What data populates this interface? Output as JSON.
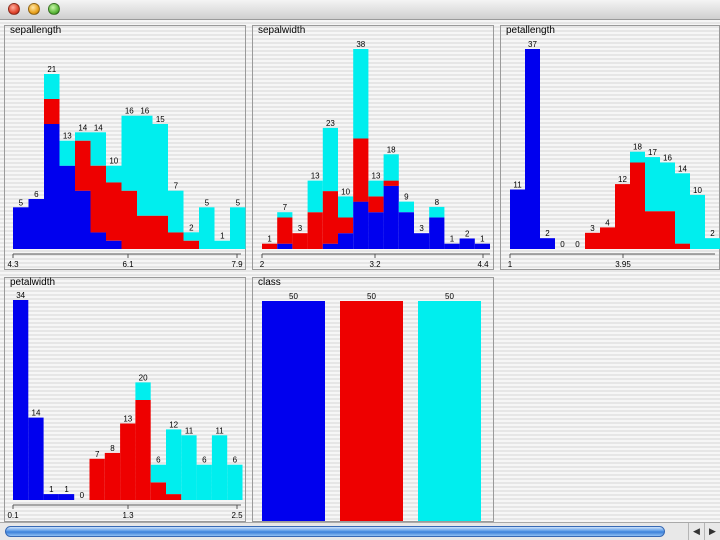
{
  "window": {
    "title": ""
  },
  "colors": {
    "setosa": "#0000ee",
    "versicolor": "#ee0000",
    "virginica": "#00eeee"
  },
  "chart_data": [
    {
      "type": "bar",
      "title": "sepallength",
      "tick_labels": [
        "4.3",
        "6.1",
        "7.9"
      ],
      "stacked": true,
      "totals": [
        5,
        6,
        21,
        13,
        14,
        14,
        10,
        16,
        16,
        15,
        7,
        2,
        5,
        1,
        5
      ],
      "series": [
        {
          "values": [
            5,
            6,
            15,
            10,
            7,
            2,
            1,
            0,
            0,
            0,
            0,
            0,
            0,
            0,
            0
          ]
        },
        {
          "values": [
            0,
            0,
            3,
            0,
            6,
            8,
            7,
            7,
            4,
            4,
            2,
            1,
            0,
            0,
            0
          ]
        },
        {
          "values": [
            0,
            0,
            3,
            3,
            1,
            4,
            2,
            9,
            12,
            11,
            5,
            1,
            5,
            1,
            5
          ]
        }
      ]
    },
    {
      "type": "bar",
      "title": "sepalwidth",
      "tick_labels": [
        "2",
        "3.2",
        "4.4"
      ],
      "stacked": true,
      "totals": [
        1,
        7,
        3,
        13,
        23,
        10,
        38,
        13,
        18,
        9,
        3,
        8,
        1,
        2,
        1
      ],
      "series": [
        {
          "values": [
            0,
            1,
            0,
            0,
            1,
            3,
            9,
            7,
            12,
            7,
            3,
            6,
            1,
            2,
            1
          ]
        },
        {
          "values": [
            1,
            5,
            3,
            7,
            10,
            3,
            12,
            3,
            1,
            0,
            0,
            0,
            0,
            0,
            0
          ]
        },
        {
          "values": [
            0,
            1,
            0,
            6,
            12,
            4,
            17,
            3,
            5,
            2,
            0,
            2,
            0,
            0,
            0
          ]
        }
      ]
    },
    {
      "type": "bar",
      "title": "petallength",
      "tick_labels": [
        "1",
        "3.95"
      ],
      "stacked": true,
      "totals": [
        11,
        37,
        2,
        0,
        0,
        3,
        4,
        12,
        18,
        17,
        16,
        14,
        10,
        2
      ],
      "series": [
        {
          "values": [
            11,
            37,
            2,
            0,
            0,
            0,
            0,
            0,
            0,
            0,
            0,
            0,
            0,
            0
          ]
        },
        {
          "values": [
            0,
            0,
            0,
            0,
            0,
            3,
            4,
            12,
            16,
            7,
            7,
            1,
            0,
            0
          ]
        },
        {
          "values": [
            0,
            0,
            0,
            0,
            0,
            0,
            0,
            0,
            2,
            10,
            9,
            13,
            10,
            2
          ]
        }
      ]
    },
    {
      "type": "bar",
      "title": "petalwidth",
      "tick_labels": [
        "0.1",
        "1.3",
        "2.5"
      ],
      "stacked": true,
      "totals": [
        34,
        14,
        1,
        1,
        0,
        7,
        8,
        13,
        20,
        6,
        12,
        11,
        6,
        11,
        6
      ],
      "series": [
        {
          "values": [
            34,
            14,
            1,
            1,
            0,
            0,
            0,
            0,
            0,
            0,
            0,
            0,
            0,
            0,
            0
          ]
        },
        {
          "values": [
            0,
            0,
            0,
            0,
            0,
            7,
            8,
            13,
            17,
            3,
            1,
            0,
            0,
            0,
            0
          ]
        },
        {
          "values": [
            0,
            0,
            0,
            0,
            0,
            0,
            0,
            0,
            3,
            3,
            11,
            11,
            6,
            11,
            6
          ]
        }
      ]
    },
    {
      "type": "bar",
      "title": "class",
      "tick_labels": [],
      "stacked": false,
      "totals": [
        50,
        50,
        50
      ],
      "series": [
        {
          "values": [
            50,
            0,
            0
          ]
        },
        {
          "values": [
            0,
            50,
            0
          ]
        },
        {
          "values": [
            0,
            0,
            50
          ]
        }
      ]
    }
  ],
  "scrollbar": {
    "left_arrow": "◀",
    "right_arrow": "▶"
  }
}
